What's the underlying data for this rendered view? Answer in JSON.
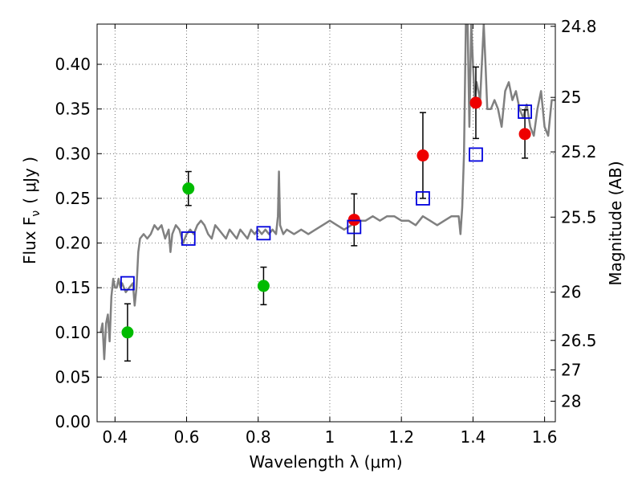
{
  "chart_data": {
    "type": "scatter",
    "xlabel": "Wavelength  λ (μm)",
    "ylabel": "Flux  F",
    "ylabel_subscript": "ν",
    "ylabel_unit": "( μJy )",
    "y2label": "Magnitude (AB)",
    "xlim": [
      0.35,
      1.63
    ],
    "ylim": [
      0.0,
      0.445
    ],
    "grid": true,
    "x_ticks": [
      0.4,
      0.6,
      0.8,
      1.0,
      1.2,
      1.4,
      1.6
    ],
    "x_tick_labels": [
      "0.4",
      "0.6",
      "0.8",
      "1",
      "1.2",
      "1.4",
      "1.6"
    ],
    "y_ticks": [
      0.0,
      0.05,
      0.1,
      0.15,
      0.2,
      0.25,
      0.3,
      0.35,
      0.4
    ],
    "y_tick_labels": [
      "0.00",
      "0.05",
      "0.10",
      "0.15",
      "0.20",
      "0.25",
      "0.30",
      "0.35",
      "0.40"
    ],
    "y2_ticks": [
      {
        "label": "24.8",
        "flux": 0.4425
      },
      {
        "label": "25",
        "flux": 0.363
      },
      {
        "label": "25.2",
        "flux": 0.302
      },
      {
        "label": "25.5",
        "flux": 0.229
      },
      {
        "label": "26",
        "flux": 0.145
      },
      {
        "label": "26.5",
        "flux": 0.091
      },
      {
        "label": "27",
        "flux": 0.058
      },
      {
        "label": "28",
        "flux": 0.023
      }
    ],
    "series": [
      {
        "kind": "line",
        "color": "#808080",
        "points": [
          [
            0.36,
            0.1
          ],
          [
            0.365,
            0.11
          ],
          [
            0.37,
            0.07
          ],
          [
            0.375,
            0.11
          ],
          [
            0.38,
            0.12
          ],
          [
            0.385,
            0.09
          ],
          [
            0.39,
            0.14
          ],
          [
            0.395,
            0.16
          ],
          [
            0.4,
            0.15
          ],
          [
            0.405,
            0.15
          ],
          [
            0.41,
            0.16
          ],
          [
            0.415,
            0.15
          ],
          [
            0.42,
            0.155
          ],
          [
            0.43,
            0.145
          ],
          [
            0.44,
            0.15
          ],
          [
            0.45,
            0.155
          ],
          [
            0.455,
            0.13
          ],
          [
            0.46,
            0.15
          ],
          [
            0.465,
            0.19
          ],
          [
            0.47,
            0.205
          ],
          [
            0.48,
            0.21
          ],
          [
            0.49,
            0.205
          ],
          [
            0.5,
            0.21
          ],
          [
            0.51,
            0.22
          ],
          [
            0.52,
            0.215
          ],
          [
            0.53,
            0.22
          ],
          [
            0.54,
            0.205
          ],
          [
            0.55,
            0.215
          ],
          [
            0.555,
            0.19
          ],
          [
            0.56,
            0.21
          ],
          [
            0.57,
            0.22
          ],
          [
            0.58,
            0.215
          ],
          [
            0.59,
            0.2
          ],
          [
            0.6,
            0.21
          ],
          [
            0.61,
            0.215
          ],
          [
            0.62,
            0.21
          ],
          [
            0.63,
            0.22
          ],
          [
            0.64,
            0.225
          ],
          [
            0.65,
            0.22
          ],
          [
            0.66,
            0.21
          ],
          [
            0.67,
            0.205
          ],
          [
            0.68,
            0.22
          ],
          [
            0.69,
            0.215
          ],
          [
            0.7,
            0.21
          ],
          [
            0.71,
            0.205
          ],
          [
            0.72,
            0.215
          ],
          [
            0.73,
            0.21
          ],
          [
            0.74,
            0.205
          ],
          [
            0.75,
            0.215
          ],
          [
            0.76,
            0.21
          ],
          [
            0.77,
            0.205
          ],
          [
            0.78,
            0.215
          ],
          [
            0.79,
            0.21
          ],
          [
            0.8,
            0.215
          ],
          [
            0.81,
            0.21
          ],
          [
            0.82,
            0.215
          ],
          [
            0.83,
            0.21
          ],
          [
            0.84,
            0.215
          ],
          [
            0.85,
            0.21
          ],
          [
            0.855,
            0.23
          ],
          [
            0.858,
            0.28
          ],
          [
            0.861,
            0.22
          ],
          [
            0.87,
            0.21
          ],
          [
            0.88,
            0.215
          ],
          [
            0.9,
            0.21
          ],
          [
            0.92,
            0.215
          ],
          [
            0.94,
            0.21
          ],
          [
            0.96,
            0.215
          ],
          [
            0.98,
            0.22
          ],
          [
            1.0,
            0.225
          ],
          [
            1.02,
            0.22
          ],
          [
            1.04,
            0.215
          ],
          [
            1.06,
            0.22
          ],
          [
            1.08,
            0.225
          ],
          [
            1.1,
            0.225
          ],
          [
            1.12,
            0.23
          ],
          [
            1.14,
            0.225
          ],
          [
            1.16,
            0.23
          ],
          [
            1.18,
            0.23
          ],
          [
            1.2,
            0.225
          ],
          [
            1.22,
            0.225
          ],
          [
            1.24,
            0.22
          ],
          [
            1.26,
            0.23
          ],
          [
            1.28,
            0.225
          ],
          [
            1.3,
            0.22
          ],
          [
            1.32,
            0.225
          ],
          [
            1.34,
            0.23
          ],
          [
            1.36,
            0.23
          ],
          [
            1.365,
            0.21
          ],
          [
            1.37,
            0.24
          ],
          [
            1.375,
            0.3
          ],
          [
            1.38,
            0.445
          ],
          [
            1.385,
            0.445
          ],
          [
            1.39,
            0.33
          ],
          [
            1.395,
            0.445
          ],
          [
            1.4,
            0.4
          ],
          [
            1.405,
            0.36
          ],
          [
            1.41,
            0.38
          ],
          [
            1.42,
            0.36
          ],
          [
            1.43,
            0.445
          ],
          [
            1.435,
            0.4
          ],
          [
            1.44,
            0.35
          ],
          [
            1.45,
            0.35
          ],
          [
            1.46,
            0.36
          ],
          [
            1.47,
            0.35
          ],
          [
            1.48,
            0.33
          ],
          [
            1.49,
            0.37
          ],
          [
            1.5,
            0.38
          ],
          [
            1.51,
            0.36
          ],
          [
            1.52,
            0.37
          ],
          [
            1.53,
            0.35
          ],
          [
            1.54,
            0.34
          ],
          [
            1.55,
            0.355
          ],
          [
            1.56,
            0.33
          ],
          [
            1.57,
            0.32
          ],
          [
            1.58,
            0.35
          ],
          [
            1.59,
            0.37
          ],
          [
            1.6,
            0.33
          ],
          [
            1.61,
            0.32
          ],
          [
            1.62,
            0.36
          ],
          [
            1.63,
            0.36
          ]
        ]
      },
      {
        "kind": "points",
        "marker": "circle",
        "color": "#00bb00",
        "points": [
          {
            "x": 0.435,
            "y": 0.1,
            "err": 0.032
          },
          {
            "x": 0.605,
            "y": 0.261,
            "err": 0.019
          },
          {
            "x": 0.815,
            "y": 0.152,
            "err": 0.021
          }
        ]
      },
      {
        "kind": "points",
        "marker": "circle",
        "color": "#ee0000",
        "points": [
          {
            "x": 1.068,
            "y": 0.226,
            "err": 0.029
          },
          {
            "x": 1.26,
            "y": 0.298,
            "err": 0.048
          },
          {
            "x": 1.408,
            "y": 0.357,
            "err": 0.04
          },
          {
            "x": 1.545,
            "y": 0.322,
            "err": 0.027
          }
        ]
      },
      {
        "kind": "points",
        "marker": "open-square",
        "color": "#0000dd",
        "points": [
          {
            "x": 0.435,
            "y": 0.155
          },
          {
            "x": 0.605,
            "y": 0.205
          },
          {
            "x": 0.815,
            "y": 0.211
          },
          {
            "x": 1.068,
            "y": 0.218
          },
          {
            "x": 1.26,
            "y": 0.25
          },
          {
            "x": 1.408,
            "y": 0.299
          },
          {
            "x": 1.545,
            "y": 0.347
          }
        ]
      }
    ]
  }
}
